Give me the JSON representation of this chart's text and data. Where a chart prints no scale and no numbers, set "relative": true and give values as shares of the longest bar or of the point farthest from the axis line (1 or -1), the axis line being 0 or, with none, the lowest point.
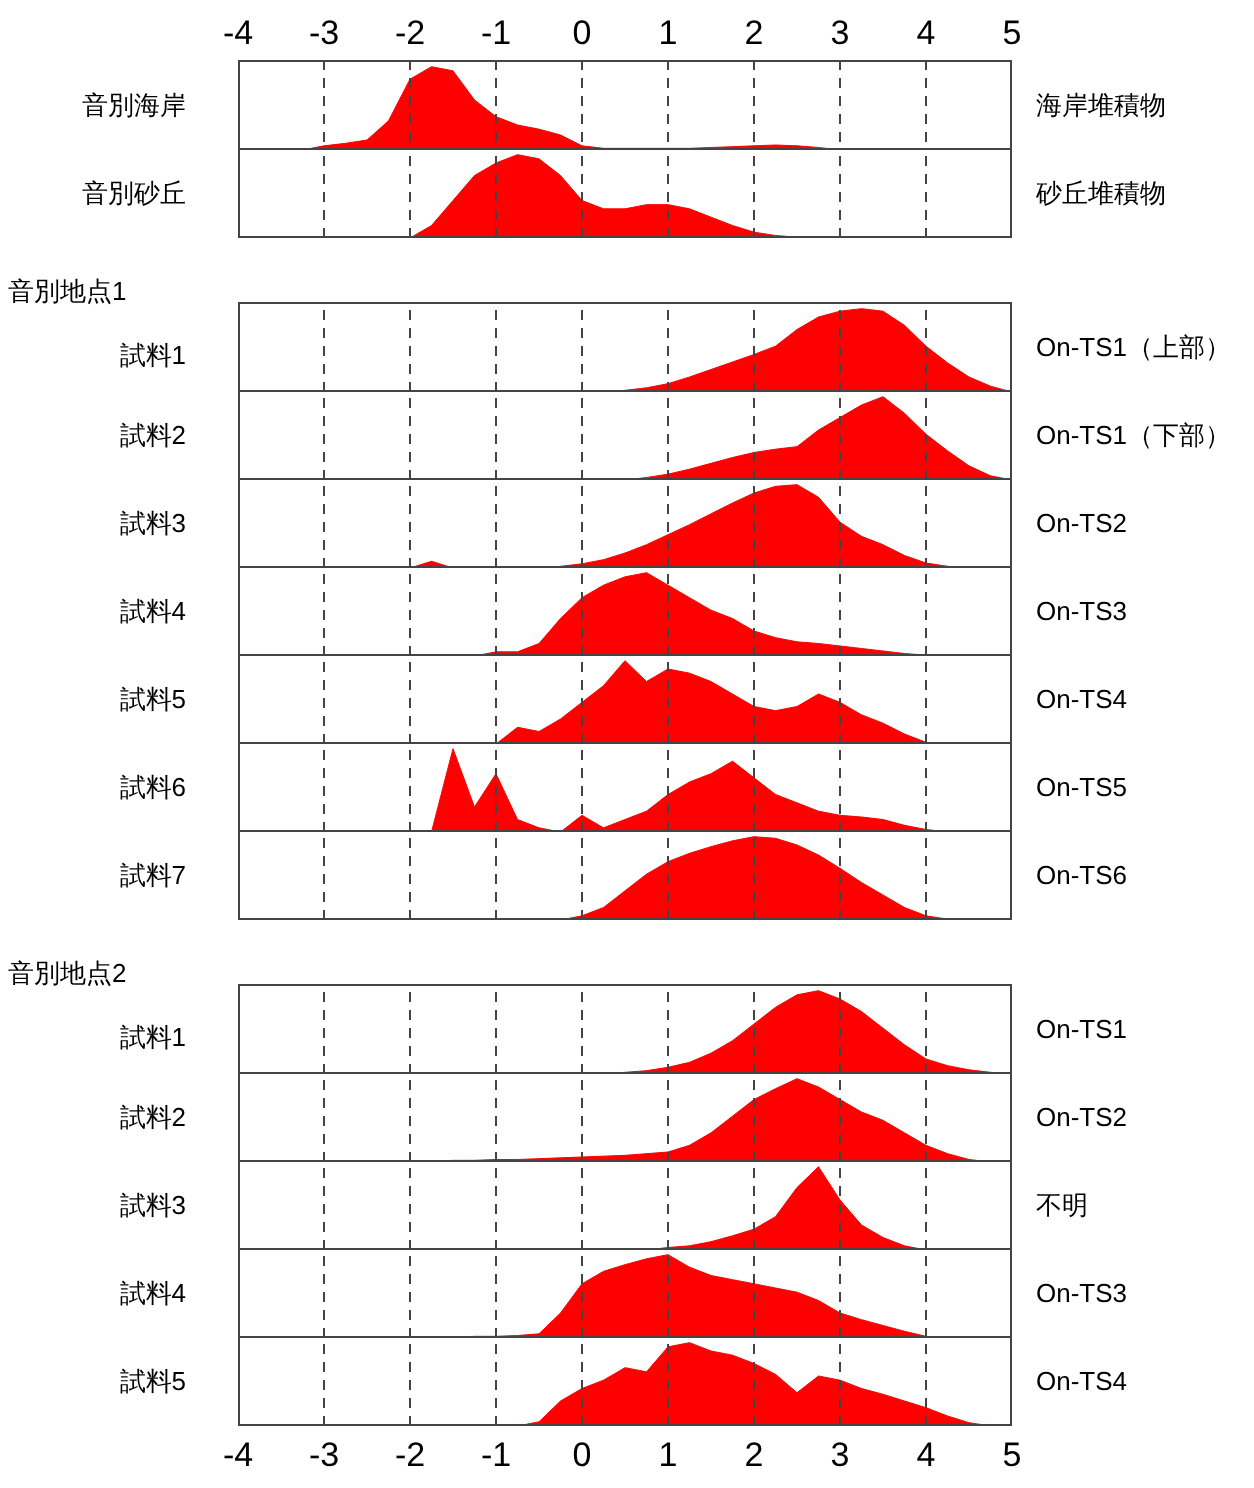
{
  "chart_data": [
    {
      "type": "area",
      "relative": true,
      "ylabel": "音別海岸",
      "y2label": "海岸堆積物",
      "grid": "x",
      "xlim": [
        -4,
        5
      ],
      "xticks": [
        -4,
        -3,
        -2,
        -1,
        0,
        1,
        2,
        3,
        4,
        5
      ],
      "x": [
        -4,
        -3.75,
        -3.5,
        -3.25,
        -3,
        -2.75,
        -2.5,
        -2.25,
        -2,
        -1.75,
        -1.5,
        -1.25,
        -1,
        -0.75,
        -0.5,
        -0.25,
        0,
        0.25,
        0.5,
        0.75,
        1,
        1.25,
        1.5,
        1.75,
        2,
        2.25,
        2.5,
        2.75,
        3,
        3.25,
        3.5,
        3.75,
        4,
        4.25,
        4.5,
        4.75,
        5
      ],
      "series": [
        {
          "color": "#ff0000",
          "values": [
            0,
            0,
            0,
            0,
            0.05,
            0.08,
            0.12,
            0.35,
            0.85,
            1,
            0.95,
            0.6,
            0.4,
            0.3,
            0.25,
            0.18,
            0.05,
            0.02,
            0.02,
            0.02,
            0.02,
            0.02,
            0.03,
            0.04,
            0.05,
            0.06,
            0.05,
            0.03,
            0,
            0,
            0,
            0,
            0,
            0,
            0,
            0,
            0
          ]
        }
      ]
    },
    {
      "type": "area",
      "relative": true,
      "ylabel": "音別砂丘",
      "y2label": "砂丘堆積物",
      "grid": "x",
      "tick_labels": false,
      "xlim": [
        -4,
        5
      ],
      "xticks": [
        -4,
        -3,
        -2,
        -1,
        0,
        1,
        2,
        3,
        4,
        5
      ],
      "x": [
        -4,
        -3.75,
        -3.5,
        -3.25,
        -3,
        -2.75,
        -2.5,
        -2.25,
        -2,
        -1.75,
        -1.5,
        -1.25,
        -1,
        -0.75,
        -0.5,
        -0.25,
        0,
        0.25,
        0.5,
        0.75,
        1,
        1.25,
        1.5,
        1.75,
        2,
        2.25,
        2.5,
        2.75,
        3,
        3.25,
        3.5,
        3.75,
        4,
        4.25,
        4.5,
        4.75,
        5
      ],
      "series": [
        {
          "color": "#ff0000",
          "values": [
            0,
            0,
            0,
            0,
            0,
            0,
            0,
            0,
            0,
            0.15,
            0.45,
            0.75,
            0.9,
            1,
            0.95,
            0.75,
            0.45,
            0.35,
            0.35,
            0.4,
            0.4,
            0.35,
            0.25,
            0.15,
            0.07,
            0.03,
            0.01,
            0,
            0,
            0,
            0,
            0,
            0,
            0,
            0,
            0,
            0
          ]
        }
      ]
    },
    {
      "type": "area",
      "relative": true,
      "title": "音別地点1",
      "ylabel": "試料1",
      "y2label": "On-TS1（上部）",
      "grid": "x",
      "tick_labels": false,
      "xlim": [
        -4,
        5
      ],
      "xticks": [
        -4,
        -3,
        -2,
        -1,
        0,
        1,
        2,
        3,
        4,
        5
      ],
      "x": [
        -4,
        -3.75,
        -3.5,
        -3.25,
        -3,
        -2.75,
        -2.5,
        -2.25,
        -2,
        -1.75,
        -1.5,
        -1.25,
        -1,
        -0.75,
        -0.5,
        -0.25,
        0,
        0.25,
        0.5,
        0.75,
        1,
        1.25,
        1.5,
        1.75,
        2,
        2.25,
        2.5,
        2.75,
        3,
        3.25,
        3.5,
        3.75,
        4,
        4.25,
        4.5,
        4.75,
        5
      ],
      "series": [
        {
          "color": "#ff0000",
          "values": [
            0,
            0,
            0,
            0,
            0,
            0,
            0,
            0,
            0,
            0,
            0,
            0,
            0,
            0,
            0,
            0,
            0,
            0,
            0.02,
            0.05,
            0.1,
            0.18,
            0.27,
            0.36,
            0.45,
            0.55,
            0.75,
            0.9,
            0.97,
            1,
            0.97,
            0.8,
            0.55,
            0.35,
            0.18,
            0.07,
            0
          ]
        }
      ]
    },
    {
      "type": "area",
      "relative": true,
      "ylabel": "試料2",
      "y2label": "On-TS1（下部）",
      "grid": "x",
      "tick_labels": false,
      "xlim": [
        -4,
        5
      ],
      "xticks": [
        -4,
        -3,
        -2,
        -1,
        0,
        1,
        2,
        3,
        4,
        5
      ],
      "x": [
        -4,
        -3.75,
        -3.5,
        -3.25,
        -3,
        -2.75,
        -2.5,
        -2.25,
        -2,
        -1.75,
        -1.5,
        -1.25,
        -1,
        -0.75,
        -0.5,
        -0.25,
        0,
        0.25,
        0.5,
        0.75,
        1,
        1.25,
        1.5,
        1.75,
        2,
        2.25,
        2.5,
        2.75,
        3,
        3.25,
        3.5,
        3.75,
        4,
        4.25,
        4.5,
        4.75,
        5
      ],
      "series": [
        {
          "color": "#ff0000",
          "values": [
            0,
            0,
            0,
            0,
            0,
            0,
            0,
            0,
            0,
            0,
            0,
            0,
            0,
            0,
            0,
            0,
            0,
            0,
            0,
            0.03,
            0.07,
            0.13,
            0.2,
            0.27,
            0.33,
            0.37,
            0.4,
            0.6,
            0.75,
            0.9,
            1,
            0.8,
            0.55,
            0.35,
            0.17,
            0.05,
            0
          ]
        }
      ]
    },
    {
      "type": "area",
      "relative": true,
      "ylabel": "試料3",
      "y2label": "On-TS2",
      "grid": "x",
      "tick_labels": false,
      "xlim": [
        -4,
        5
      ],
      "xticks": [
        -4,
        -3,
        -2,
        -1,
        0,
        1,
        2,
        3,
        4,
        5
      ],
      "x": [
        -4,
        -3.75,
        -3.5,
        -3.25,
        -3,
        -2.75,
        -2.5,
        -2.25,
        -2,
        -1.75,
        -1.5,
        -1.25,
        -1,
        -0.75,
        -0.5,
        -0.25,
        0,
        0.25,
        0.5,
        0.75,
        1,
        1.25,
        1.5,
        1.75,
        2,
        2.25,
        2.5,
        2.75,
        3,
        3.25,
        3.5,
        3.75,
        4,
        4.25,
        4.5,
        4.75,
        5
      ],
      "series": [
        {
          "color": "#ff0000",
          "values": [
            0,
            0,
            0,
            0,
            0,
            0,
            0,
            0,
            0,
            0.08,
            0,
            0,
            0,
            0,
            0,
            0.02,
            0.05,
            0.1,
            0.18,
            0.28,
            0.4,
            0.52,
            0.65,
            0.78,
            0.9,
            0.98,
            1,
            0.85,
            0.55,
            0.38,
            0.28,
            0.15,
            0.06,
            0.02,
            0,
            0,
            0
          ]
        }
      ]
    },
    {
      "type": "area",
      "relative": true,
      "ylabel": "試料4",
      "y2label": "On-TS3",
      "grid": "x",
      "tick_labels": false,
      "xlim": [
        -4,
        5
      ],
      "xticks": [
        -4,
        -3,
        -2,
        -1,
        0,
        1,
        2,
        3,
        4,
        5
      ],
      "x": [
        -4,
        -3.75,
        -3.5,
        -3.25,
        -3,
        -2.75,
        -2.5,
        -2.25,
        -2,
        -1.75,
        -1.5,
        -1.25,
        -1,
        -0.75,
        -0.5,
        -0.25,
        0,
        0.25,
        0.5,
        0.75,
        1,
        1.25,
        1.5,
        1.75,
        2,
        2.25,
        2.5,
        2.75,
        3,
        3.25,
        3.5,
        3.75,
        4,
        4.25,
        4.5,
        4.75,
        5
      ],
      "series": [
        {
          "color": "#ff0000",
          "values": [
            0,
            0,
            0,
            0,
            0,
            0,
            0,
            0,
            0,
            0,
            0,
            0,
            0.05,
            0.05,
            0.15,
            0.45,
            0.7,
            0.85,
            0.95,
            1,
            0.85,
            0.7,
            0.55,
            0.45,
            0.3,
            0.22,
            0.17,
            0.15,
            0.12,
            0.09,
            0.06,
            0.03,
            0.01,
            0,
            0,
            0,
            0
          ]
        }
      ]
    },
    {
      "type": "area",
      "relative": true,
      "ylabel": "試料5",
      "y2label": "On-TS4",
      "grid": "x",
      "tick_labels": false,
      "xlim": [
        -4,
        5
      ],
      "xticks": [
        -4,
        -3,
        -2,
        -1,
        0,
        1,
        2,
        3,
        4,
        5
      ],
      "x": [
        -4,
        -3.75,
        -3.5,
        -3.25,
        -3,
        -2.75,
        -2.5,
        -2.25,
        -2,
        -1.75,
        -1.5,
        -1.25,
        -1,
        -0.75,
        -0.5,
        -0.25,
        0,
        0.25,
        0.5,
        0.75,
        1,
        1.25,
        1.5,
        1.75,
        2,
        2.25,
        2.5,
        2.75,
        3,
        3.25,
        3.5,
        3.75,
        4,
        4.25,
        4.5,
        4.75,
        5
      ],
      "series": [
        {
          "color": "#ff0000",
          "values": [
            0,
            0,
            0,
            0,
            0,
            0,
            0,
            0,
            0,
            0,
            0,
            0,
            0,
            0.2,
            0.15,
            0.3,
            0.5,
            0.7,
            1,
            0.75,
            0.9,
            0.85,
            0.75,
            0.6,
            0.45,
            0.4,
            0.45,
            0.6,
            0.5,
            0.35,
            0.25,
            0.12,
            0.02,
            0,
            0,
            0,
            0
          ]
        }
      ]
    },
    {
      "type": "area",
      "relative": true,
      "ylabel": "試料6",
      "y2label": "On-TS5",
      "grid": "x",
      "tick_labels": false,
      "xlim": [
        -4,
        5
      ],
      "xticks": [
        -4,
        -3,
        -2,
        -1,
        0,
        1,
        2,
        3,
        4,
        5
      ],
      "x": [
        -4,
        -3.75,
        -3.5,
        -3.25,
        -3,
        -2.75,
        -2.5,
        -2.25,
        -2,
        -1.75,
        -1.5,
        -1.25,
        -1,
        -0.75,
        -0.5,
        -0.25,
        0,
        0.25,
        0.5,
        0.75,
        1,
        1.25,
        1.5,
        1.75,
        2,
        2.25,
        2.5,
        2.75,
        3,
        3.25,
        3.5,
        3.75,
        4,
        4.25,
        4.5,
        4.75,
        5
      ],
      "series": [
        {
          "color": "#ff0000",
          "values": [
            0,
            0,
            0,
            0,
            0,
            0,
            0,
            0,
            0,
            0,
            1,
            0.3,
            0.7,
            0.15,
            0.05,
            0,
            0.2,
            0.05,
            0.15,
            0.25,
            0.45,
            0.6,
            0.7,
            0.85,
            0.65,
            0.45,
            0.35,
            0.25,
            0.2,
            0.18,
            0.15,
            0.08,
            0.03,
            0,
            0,
            0,
            0
          ]
        }
      ]
    },
    {
      "type": "area",
      "relative": true,
      "ylabel": "試料7",
      "y2label": "On-TS6",
      "grid": "x",
      "tick_labels": false,
      "xlim": [
        -4,
        5
      ],
      "xticks": [
        -4,
        -3,
        -2,
        -1,
        0,
        1,
        2,
        3,
        4,
        5
      ],
      "x": [
        -4,
        -3.75,
        -3.5,
        -3.25,
        -3,
        -2.75,
        -2.5,
        -2.25,
        -2,
        -1.75,
        -1.5,
        -1.25,
        -1,
        -0.75,
        -0.5,
        -0.25,
        0,
        0.25,
        0.5,
        0.75,
        1,
        1.25,
        1.5,
        1.75,
        2,
        2.25,
        2.5,
        2.75,
        3,
        3.25,
        3.5,
        3.75,
        4,
        4.25,
        4.5,
        4.75,
        5
      ],
      "series": [
        {
          "color": "#ff0000",
          "values": [
            0,
            0,
            0,
            0,
            0,
            0,
            0,
            0,
            0,
            0,
            0,
            0,
            0,
            0,
            0,
            0,
            0.05,
            0.15,
            0.35,
            0.55,
            0.7,
            0.8,
            0.88,
            0.95,
            1,
            0.98,
            0.9,
            0.78,
            0.62,
            0.45,
            0.3,
            0.15,
            0.05,
            0.01,
            0,
            0,
            0
          ]
        }
      ]
    },
    {
      "type": "area",
      "relative": true,
      "title": "音別地点2",
      "ylabel": "試料1",
      "y2label": "On-TS1",
      "grid": "x",
      "tick_labels": false,
      "xlim": [
        -4,
        5
      ],
      "xticks": [
        -4,
        -3,
        -2,
        -1,
        0,
        1,
        2,
        3,
        4,
        5
      ],
      "x": [
        -4,
        -3.75,
        -3.5,
        -3.25,
        -3,
        -2.75,
        -2.5,
        -2.25,
        -2,
        -1.75,
        -1.5,
        -1.25,
        -1,
        -0.75,
        -0.5,
        -0.25,
        0,
        0.25,
        0.5,
        0.75,
        1,
        1.25,
        1.5,
        1.75,
        2,
        2.25,
        2.5,
        2.75,
        3,
        3.25,
        3.5,
        3.75,
        4,
        4.25,
        4.5,
        4.75,
        5
      ],
      "series": [
        {
          "color": "#ff0000",
          "values": [
            0,
            0,
            0,
            0,
            0,
            0,
            0,
            0,
            0,
            0,
            0,
            0,
            0,
            0,
            0,
            0,
            0,
            0,
            0.02,
            0.04,
            0.08,
            0.14,
            0.25,
            0.4,
            0.6,
            0.8,
            0.95,
            1,
            0.9,
            0.75,
            0.55,
            0.35,
            0.18,
            0.1,
            0.05,
            0.02,
            0
          ]
        }
      ]
    },
    {
      "type": "area",
      "relative": true,
      "ylabel": "試料2",
      "y2label": "On-TS2",
      "grid": "x",
      "tick_labels": false,
      "xlim": [
        -4,
        5
      ],
      "xticks": [
        -4,
        -3,
        -2,
        -1,
        0,
        1,
        2,
        3,
        4,
        5
      ],
      "x": [
        -4,
        -3.75,
        -3.5,
        -3.25,
        -3,
        -2.75,
        -2.5,
        -2.25,
        -2,
        -1.75,
        -1.5,
        -1.25,
        -1,
        -0.75,
        -0.5,
        -0.25,
        0,
        0.25,
        0.5,
        0.75,
        1,
        1.25,
        1.5,
        1.75,
        2,
        2.25,
        2.5,
        2.75,
        3,
        3.25,
        3.5,
        3.75,
        4,
        4.25,
        4.5,
        4.75,
        5
      ],
      "series": [
        {
          "color": "#ff0000",
          "values": [
            0,
            0,
            0,
            0,
            0,
            0,
            0,
            0,
            0,
            0,
            0.02,
            0.02,
            0.03,
            0.03,
            0.04,
            0.05,
            0.06,
            0.07,
            0.08,
            0.1,
            0.12,
            0.2,
            0.35,
            0.55,
            0.75,
            0.88,
            1,
            0.9,
            0.75,
            0.6,
            0.5,
            0.35,
            0.2,
            0.1,
            0.03,
            0,
            0
          ]
        }
      ]
    },
    {
      "type": "area",
      "relative": true,
      "ylabel": "試料3",
      "y2label": "不明",
      "grid": "x",
      "tick_labels": false,
      "xlim": [
        -4,
        5
      ],
      "xticks": [
        -4,
        -3,
        -2,
        -1,
        0,
        1,
        2,
        3,
        4,
        5
      ],
      "x": [
        -4,
        -3.75,
        -3.5,
        -3.25,
        -3,
        -2.75,
        -2.5,
        -2.25,
        -2,
        -1.75,
        -1.5,
        -1.25,
        -1,
        -0.75,
        -0.5,
        -0.25,
        0,
        0.25,
        0.5,
        0.75,
        1,
        1.25,
        1.5,
        1.75,
        2,
        2.25,
        2.5,
        2.75,
        3,
        3.25,
        3.5,
        3.75,
        4,
        4.25,
        4.5,
        4.75,
        5
      ],
      "series": [
        {
          "color": "#ff0000",
          "values": [
            0,
            0,
            0,
            0,
            0,
            0,
            0,
            0,
            0,
            0,
            0,
            0,
            0,
            0,
            0,
            0,
            0,
            0,
            0,
            0,
            0.03,
            0.05,
            0.1,
            0.17,
            0.25,
            0.4,
            0.75,
            1,
            0.6,
            0.3,
            0.15,
            0.05,
            0,
            0,
            0,
            0,
            0
          ]
        }
      ]
    },
    {
      "type": "area",
      "relative": true,
      "ylabel": "試料4",
      "y2label": "On-TS3",
      "grid": "x",
      "tick_labels": false,
      "xlim": [
        -4,
        5
      ],
      "xticks": [
        -4,
        -3,
        -2,
        -1,
        0,
        1,
        2,
        3,
        4,
        5
      ],
      "x": [
        -4,
        -3.75,
        -3.5,
        -3.25,
        -3,
        -2.75,
        -2.5,
        -2.25,
        -2,
        -1.75,
        -1.5,
        -1.25,
        -1,
        -0.75,
        -0.5,
        -0.25,
        0,
        0.25,
        0.5,
        0.75,
        1,
        1.25,
        1.5,
        1.75,
        2,
        2.25,
        2.5,
        2.75,
        3,
        3.25,
        3.5,
        3.75,
        4,
        4.25,
        4.5,
        4.75,
        5
      ],
      "series": [
        {
          "color": "#ff0000",
          "values": [
            0,
            0,
            0,
            0,
            0,
            0,
            0,
            0,
            0,
            0,
            0,
            0.02,
            0.02,
            0.03,
            0.05,
            0.3,
            0.65,
            0.8,
            0.88,
            0.95,
            1,
            0.85,
            0.75,
            0.7,
            0.65,
            0.6,
            0.55,
            0.45,
            0.3,
            0.22,
            0.15,
            0.08,
            0.02,
            0,
            0,
            0,
            0
          ]
        }
      ]
    },
    {
      "type": "area",
      "relative": true,
      "ylabel": "試料5",
      "y2label": "On-TS4",
      "grid": "x",
      "tick_labels": "x",
      "xlim": [
        -4,
        5
      ],
      "xticks": [
        -4,
        -3,
        -2,
        -1,
        0,
        1,
        2,
        3,
        4,
        5
      ],
      "x": [
        -4,
        -3.75,
        -3.5,
        -3.25,
        -3,
        -2.75,
        -2.5,
        -2.25,
        -2,
        -1.75,
        -1.5,
        -1.25,
        -1,
        -0.75,
        -0.5,
        -0.25,
        0,
        0.25,
        0.5,
        0.75,
        1,
        1.25,
        1.5,
        1.75,
        2,
        2.25,
        2.5,
        2.75,
        3,
        3.25,
        3.5,
        3.75,
        4,
        4.25,
        4.5,
        4.75,
        5
      ],
      "series": [
        {
          "color": "#ff0000",
          "values": [
            0,
            0,
            0,
            0,
            0,
            0,
            0,
            0,
            0,
            0,
            0,
            0,
            0,
            0,
            0.05,
            0.3,
            0.45,
            0.55,
            0.7,
            0.65,
            0.95,
            1,
            0.9,
            0.85,
            0.75,
            0.62,
            0.4,
            0.6,
            0.55,
            0.45,
            0.38,
            0.3,
            0.22,
            0.12,
            0.04,
            0,
            0
          ]
        }
      ]
    }
  ]
}
